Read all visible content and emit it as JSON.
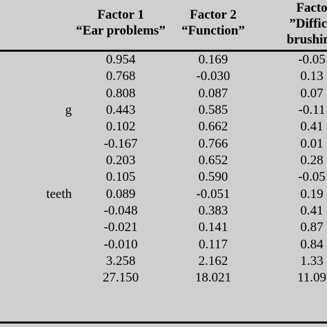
{
  "header": {
    "col1_line1": "Factor 1",
    "col1_line2": "“Ear problems”",
    "col2_line1": "Factor 2",
    "col2_line2": "“Function”",
    "col3_line1": "Facto",
    "col3_line2": "”Difficu",
    "col3_line3": "brushing"
  },
  "rows": [
    {
      "label": "",
      "f1": "0.954",
      "f2": "0.169",
      "f3": "-0.05"
    },
    {
      "label": "",
      "f1": "0.768",
      "f2": "-0.030",
      "f3": "0.13"
    },
    {
      "label": "",
      "f1": "0.808",
      "f2": "0.087",
      "f3": "0.07"
    },
    {
      "label": "g",
      "f1": "0.443",
      "f2": "0.585",
      "f3": "-0.11"
    },
    {
      "label": "",
      "f1": "0.102",
      "f2": "0.662",
      "f3": "0.41"
    },
    {
      "label": "",
      "f1": "-0.167",
      "f2": "0.766",
      "f3": "0.01"
    },
    {
      "label": "",
      "f1": "0.203",
      "f2": "0.652",
      "f3": "0.28"
    },
    {
      "label": "",
      "f1": "0.105",
      "f2": "0.590",
      "f3": "-0.05"
    },
    {
      "label": "teeth",
      "f1": "0.089",
      "f2": "-0.051",
      "f3": "0.19"
    },
    {
      "label": "",
      "f1": "-0.048",
      "f2": "0.383",
      "f3": "0.41"
    },
    {
      "label": "",
      "f1": "-0.021",
      "f2": "0.141",
      "f3": "0.87"
    },
    {
      "label": "",
      "f1": "-0.010",
      "f2": "0.117",
      "f3": "0.84"
    },
    {
      "label": "",
      "f1": "3.258",
      "f2": "2.162",
      "f3": "1.33"
    },
    {
      "label": "",
      "f1": "27.150",
      "f2": "18.021",
      "f3": "11.09"
    }
  ]
}
